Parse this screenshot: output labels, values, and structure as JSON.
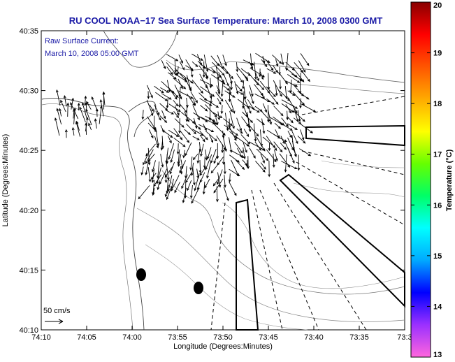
{
  "chart_data": {
    "type": "vector-map",
    "title": "RU COOL  NOAA−17  Sea Surface Temperature:  March 10, 2008 0300 GMT",
    "annotation_line1": "Raw Surface Current:",
    "annotation_line2": "March 10, 2008 05:00 GMT",
    "xlabel": "Longitude (Degrees:Minutes)",
    "ylabel": "Latitude (Degrees:Minutes)",
    "x_ticks": [
      "74:10",
      "74:05",
      "74:00",
      "73:55",
      "73:50",
      "73:45",
      "73:40",
      "73:35",
      "73:3"
    ],
    "y_ticks": [
      "40:35",
      "40:30",
      "40:25",
      "40:20",
      "40:15",
      "40:10"
    ],
    "xlim_deg": [
      -74.1667,
      -73.5167
    ],
    "ylim_deg": [
      40.1667,
      40.5833
    ],
    "scale_label": "50 cm/s",
    "scale_speed_cms": 50,
    "colorbar": {
      "label": "Temperature (°C)",
      "range": [
        13,
        20
      ],
      "ticks": [
        "20",
        "19",
        "18",
        "17",
        "16",
        "15",
        "14",
        "13"
      ],
      "colors": [
        "#ff66dd",
        "#9b30ff",
        "#0000ff",
        "#00aaff",
        "#00ffff",
        "#00ff66",
        "#66ff00",
        "#ffff00",
        "#ffaa00",
        "#ff5500",
        "#ff0000",
        "#880000"
      ]
    },
    "current_field": {
      "description": "Surface current vectors over New York Bight apex",
      "dominant_direction_deg": 300,
      "speed_range_cms": [
        20,
        80
      ]
    }
  }
}
